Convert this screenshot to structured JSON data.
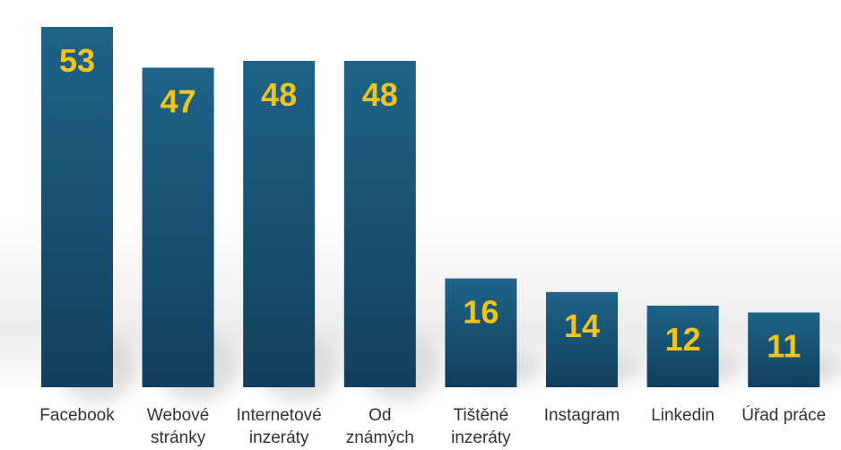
{
  "chart_data": {
    "type": "bar",
    "categories": [
      [
        "Facebook"
      ],
      [
        "Webové",
        "stránky"
      ],
      [
        "Internetové",
        "inzeráty"
      ],
      [
        "Od",
        "známých"
      ],
      [
        "Tištěné",
        "inzeráty"
      ],
      [
        "Instagram"
      ],
      [
        "Linkedin"
      ],
      [
        "Úřad práce"
      ]
    ],
    "values": [
      53,
      47,
      48,
      48,
      16,
      14,
      12,
      11
    ],
    "ylim": [
      0,
      53
    ],
    "grid": false,
    "legend": "none",
    "data_labels": "inside-top",
    "colors": {
      "bar_top": "#1e6388",
      "bar_bottom": "#123f5b",
      "label": "#f2c41b",
      "shadow": "#c8c8c8",
      "backdrop": "#f0f0f0"
    }
  }
}
